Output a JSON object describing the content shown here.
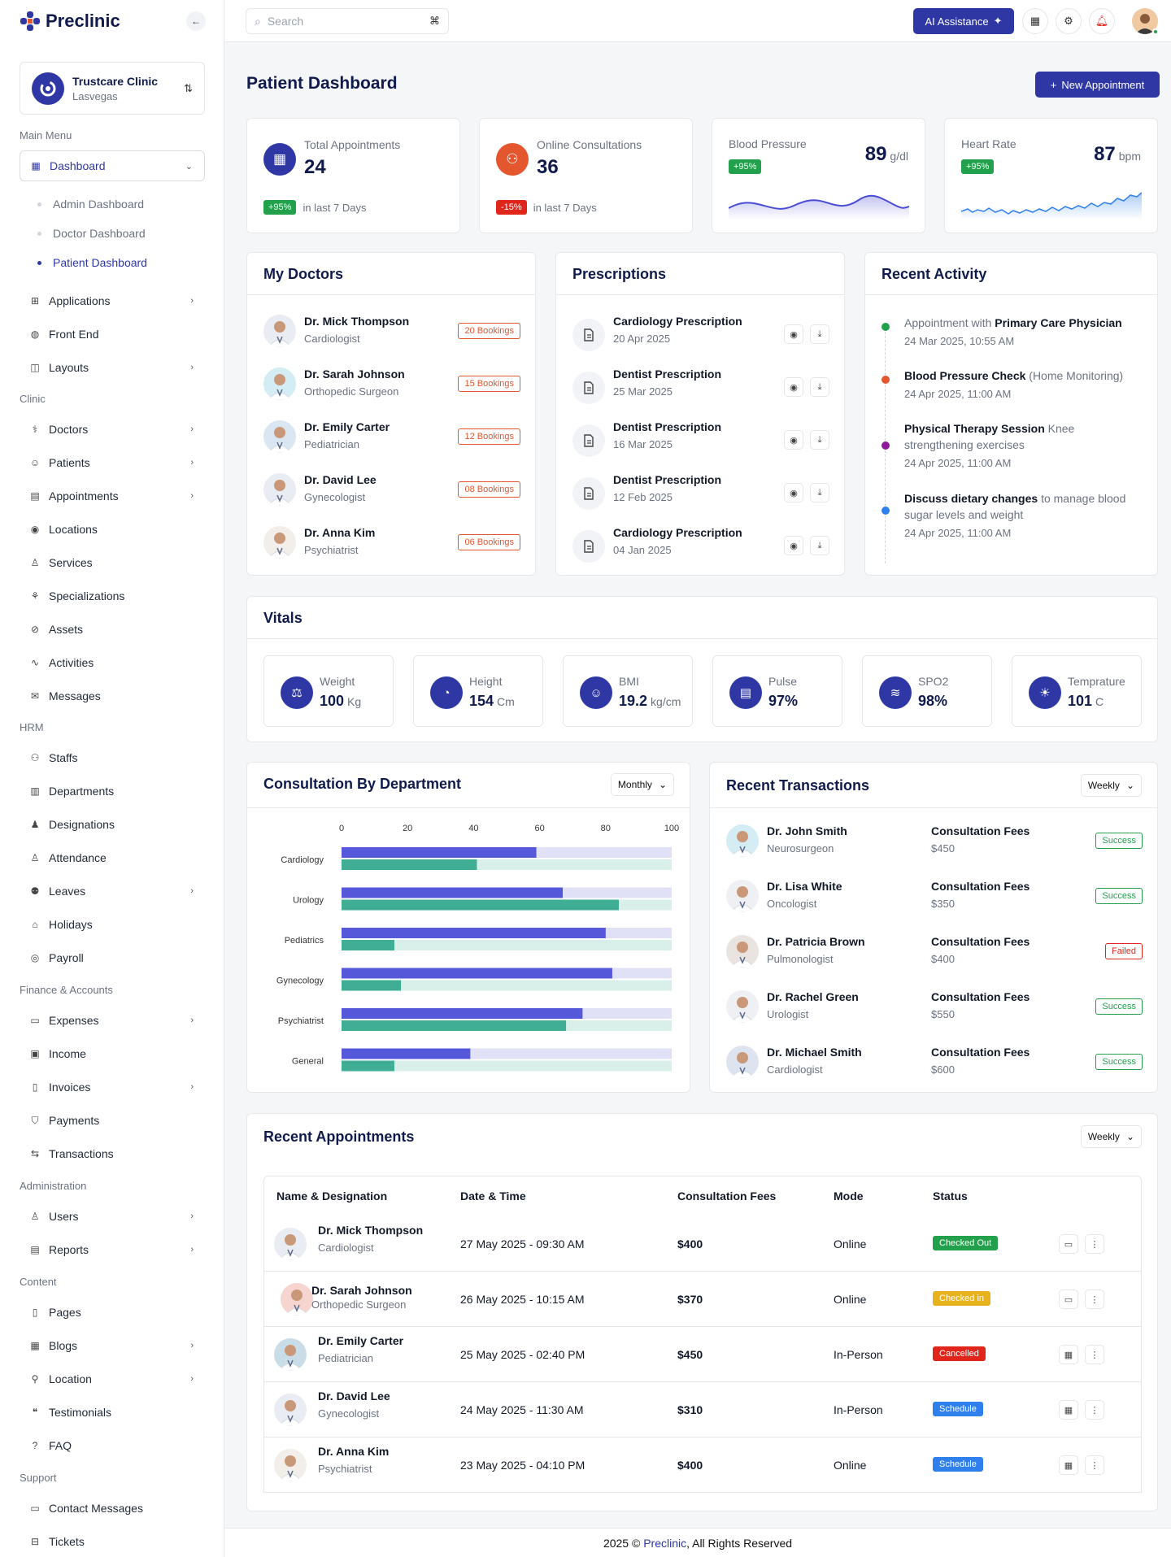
{
  "app": {
    "name": "Preclinic"
  },
  "clinic": {
    "name": "Trustcare Clinic",
    "location": "Lasvegas"
  },
  "topbar": {
    "search_placeholder": "Search",
    "search_shortcut": "⌘",
    "ai_label": "AI Assistance"
  },
  "sidebar": {
    "main_menu": "Main Menu",
    "dashboard": "Dashboard",
    "dashboard_sub": [
      "Admin Dashboard",
      "Doctor Dashboard",
      "Patient Dashboard"
    ],
    "applications": "Applications",
    "front_end": "Front End",
    "layouts": "Layouts",
    "clinic_label": "Clinic",
    "clinic_items": [
      "Doctors",
      "Patients",
      "Appointments",
      "Locations",
      "Services",
      "Specializations",
      "Assets",
      "Activities",
      "Messages"
    ],
    "hrm_label": "HRM",
    "hrm_items": [
      "Staffs",
      "Departments",
      "Designations",
      "Attendance",
      "Leaves",
      "Holidays",
      "Payroll"
    ],
    "finance_label": "Finance & Accounts",
    "finance_items": [
      "Expenses",
      "Income",
      "Invoices",
      "Payments",
      "Transactions"
    ],
    "admin_label": "Administration",
    "admin_items": [
      "Users",
      "Reports"
    ],
    "content_label": "Content",
    "content_items": [
      "Pages",
      "Blogs",
      "Location",
      "Testimonials",
      "FAQ"
    ],
    "support_label": "Support",
    "support_items": [
      "Contact Messages",
      "Tickets"
    ]
  },
  "page": {
    "title": "Patient Dashboard",
    "new_appointment": "New Appointment"
  },
  "stats": {
    "total_appointments": {
      "label": "Total Appointments",
      "value": "24",
      "change": "+95%",
      "foot": "in last 7 Days"
    },
    "online_consultations": {
      "label": "Online Consultations",
      "value": "36",
      "change": "-15%",
      "foot": "in last 7 Days"
    },
    "blood_pressure": {
      "label": "Blood Pressure",
      "value": "89",
      "unit": "g/dl",
      "change": "+95%"
    },
    "heart_rate": {
      "label": "Heart Rate",
      "value": "87",
      "unit": "bpm",
      "change": "+95%"
    }
  },
  "my_doctors": {
    "title": "My Doctors",
    "items": [
      {
        "name": "Dr. Mick Thompson",
        "role": "Cardiologist",
        "bookings": "20 Bookings"
      },
      {
        "name": "Dr. Sarah Johnson",
        "role": "Orthopedic Surgeon",
        "bookings": "15 Bookings"
      },
      {
        "name": "Dr. Emily Carter",
        "role": "Pediatrician",
        "bookings": "12 Bookings"
      },
      {
        "name": "Dr. David Lee",
        "role": "Gynecologist",
        "bookings": "08 Bookings"
      },
      {
        "name": "Dr. Anna Kim",
        "role": "Psychiatrist",
        "bookings": "06 Bookings"
      }
    ]
  },
  "prescriptions": {
    "title": "Prescriptions",
    "items": [
      {
        "name": "Cardiology Prescription",
        "date": "20 Apr 2025"
      },
      {
        "name": "Dentist Prescription",
        "date": "25 Mar 2025"
      },
      {
        "name": "Dentist Prescription",
        "date": "16 Mar 2025"
      },
      {
        "name": "Dentist Prescription",
        "date": "12 Feb 2025"
      },
      {
        "name": "Cardiology Prescription",
        "date": "04 Jan 2025"
      }
    ]
  },
  "recent_activity": {
    "title": "Recent Activity",
    "items": [
      {
        "pre": "Appointment with ",
        "bold": "Primary Care Physician",
        "post": "",
        "time": "24 Mar 2025, 10:55 AM",
        "color": "#22a04b"
      },
      {
        "pre": "",
        "bold": "Blood Pressure Check",
        "post": " (Home Monitoring)",
        "time": "24 Apr 2025, 11:00 AM",
        "color": "#e4572e"
      },
      {
        "pre": "",
        "bold": "Physical Therapy Session",
        "post": " Knee strengthening exercises",
        "time": "24 Apr 2025, 11:00 AM",
        "color": "#8e1a9b"
      },
      {
        "pre": "",
        "bold": "Discuss dietary changes",
        "post": " to manage blood sugar levels and weight",
        "time": "24 Apr 2025, 11:00 AM",
        "color": "#2f80ed"
      }
    ]
  },
  "vitals": {
    "title": "Vitals",
    "items": [
      {
        "label": "Weight",
        "value": "100",
        "unit": "Kg",
        "icon": "weight-icon"
      },
      {
        "label": "Height",
        "value": "154",
        "unit": "Cm",
        "icon": "height-icon"
      },
      {
        "label": "BMI",
        "value": "19.2",
        "unit": "kg/cm",
        "icon": "bmi-icon"
      },
      {
        "label": "Pulse",
        "value": "97%",
        "unit": "",
        "icon": "pulse-icon"
      },
      {
        "label": "SPO2",
        "value": "98%",
        "unit": "",
        "icon": "spo2-icon"
      },
      {
        "label": "Temprature",
        "value": "101",
        "unit": "C",
        "icon": "temperature-icon"
      }
    ]
  },
  "consultation": {
    "title": "Consultation By Department",
    "filter": "Monthly"
  },
  "chart_data": {
    "type": "bar",
    "orientation": "horizontal",
    "categories": [
      "Cardiology",
      "Urology",
      "Pediatrics",
      "Gynecology",
      "Psychiatrist",
      "General"
    ],
    "series": [
      {
        "values": [
          59,
          67,
          80,
          82,
          73,
          39
        ],
        "color": "#5558d8"
      },
      {
        "values": [
          41,
          84,
          16,
          18,
          68,
          16
        ],
        "color": "#3fae95"
      }
    ],
    "xlim": [
      0,
      100
    ],
    "ticks": [
      "0",
      "20",
      "40",
      "60",
      "80",
      "100"
    ],
    "grid": false
  },
  "transactions": {
    "title": "Recent Transactions",
    "filter": "Weekly",
    "items": [
      {
        "name": "Dr. John Smith",
        "role": "Neurosurgeon",
        "type": "Consultation Fees",
        "amount": "$450",
        "status": "Success"
      },
      {
        "name": "Dr. Lisa White",
        "role": "Oncologist",
        "type": "Consultation Fees",
        "amount": "$350",
        "status": "Success"
      },
      {
        "name": "Dr. Patricia Brown",
        "role": "Pulmonologist",
        "type": "Consultation Fees",
        "amount": "$400",
        "status": "Failed"
      },
      {
        "name": "Dr. Rachel Green",
        "role": "Urologist",
        "type": "Consultation Fees",
        "amount": "$550",
        "status": "Success"
      },
      {
        "name": "Dr. Michael Smith",
        "role": "Cardiologist",
        "type": "Consultation Fees",
        "amount": "$600",
        "status": "Success"
      }
    ]
  },
  "appointments": {
    "title": "Recent Appointments",
    "filter": "Weekly",
    "headers": [
      "Name & Designation",
      "Date & Time",
      "Consultation Fees",
      "Mode",
      "Status"
    ],
    "rows": [
      {
        "name": "Dr. Mick Thompson",
        "role": "Cardiologist",
        "datetime": "27 May 2025 - 09:30 AM",
        "fee": "$400",
        "mode": "Online",
        "status": "Checked Out",
        "status_color": "#22a04b",
        "action_icon": "video-icon"
      },
      {
        "name": "Dr. Sarah Johnson",
        "role": "Orthopedic Surgeon",
        "datetime": "26 May 2025 - 10:15 AM",
        "fee": "$370",
        "mode": "Online",
        "status": "Checked in",
        "status_color": "#e8b21c",
        "action_icon": "video-icon"
      },
      {
        "name": "Dr. Emily Carter",
        "role": "Pediatrician",
        "datetime": "25 May 2025 - 02:40 PM",
        "fee": "$450",
        "mode": "In-Person",
        "status": "Cancelled",
        "status_color": "#e0261b",
        "action_icon": "calendar-icon"
      },
      {
        "name": "Dr. David Lee",
        "role": "Gynecologist",
        "datetime": "24 May 2025 - 11:30 AM",
        "fee": "$310",
        "mode": "In-Person",
        "status": "Schedule",
        "status_color": "#2f80ed",
        "action_icon": "calendar-icon"
      },
      {
        "name": "Dr. Anna Kim",
        "role": "Psychiatrist",
        "datetime": "23 May 2025 - 04:10 PM",
        "fee": "$400",
        "mode": "Online",
        "status": "Schedule",
        "status_color": "#2f80ed",
        "action_icon": "calendar-icon"
      }
    ]
  },
  "footer": {
    "pre": "2025 © ",
    "brand": "Preclinic",
    "post": ", All Rights Reserved"
  },
  "colors": {
    "primary": "#2e37a4",
    "success": "#22a04b",
    "danger": "#e0261b",
    "orange": "#e4572e"
  }
}
